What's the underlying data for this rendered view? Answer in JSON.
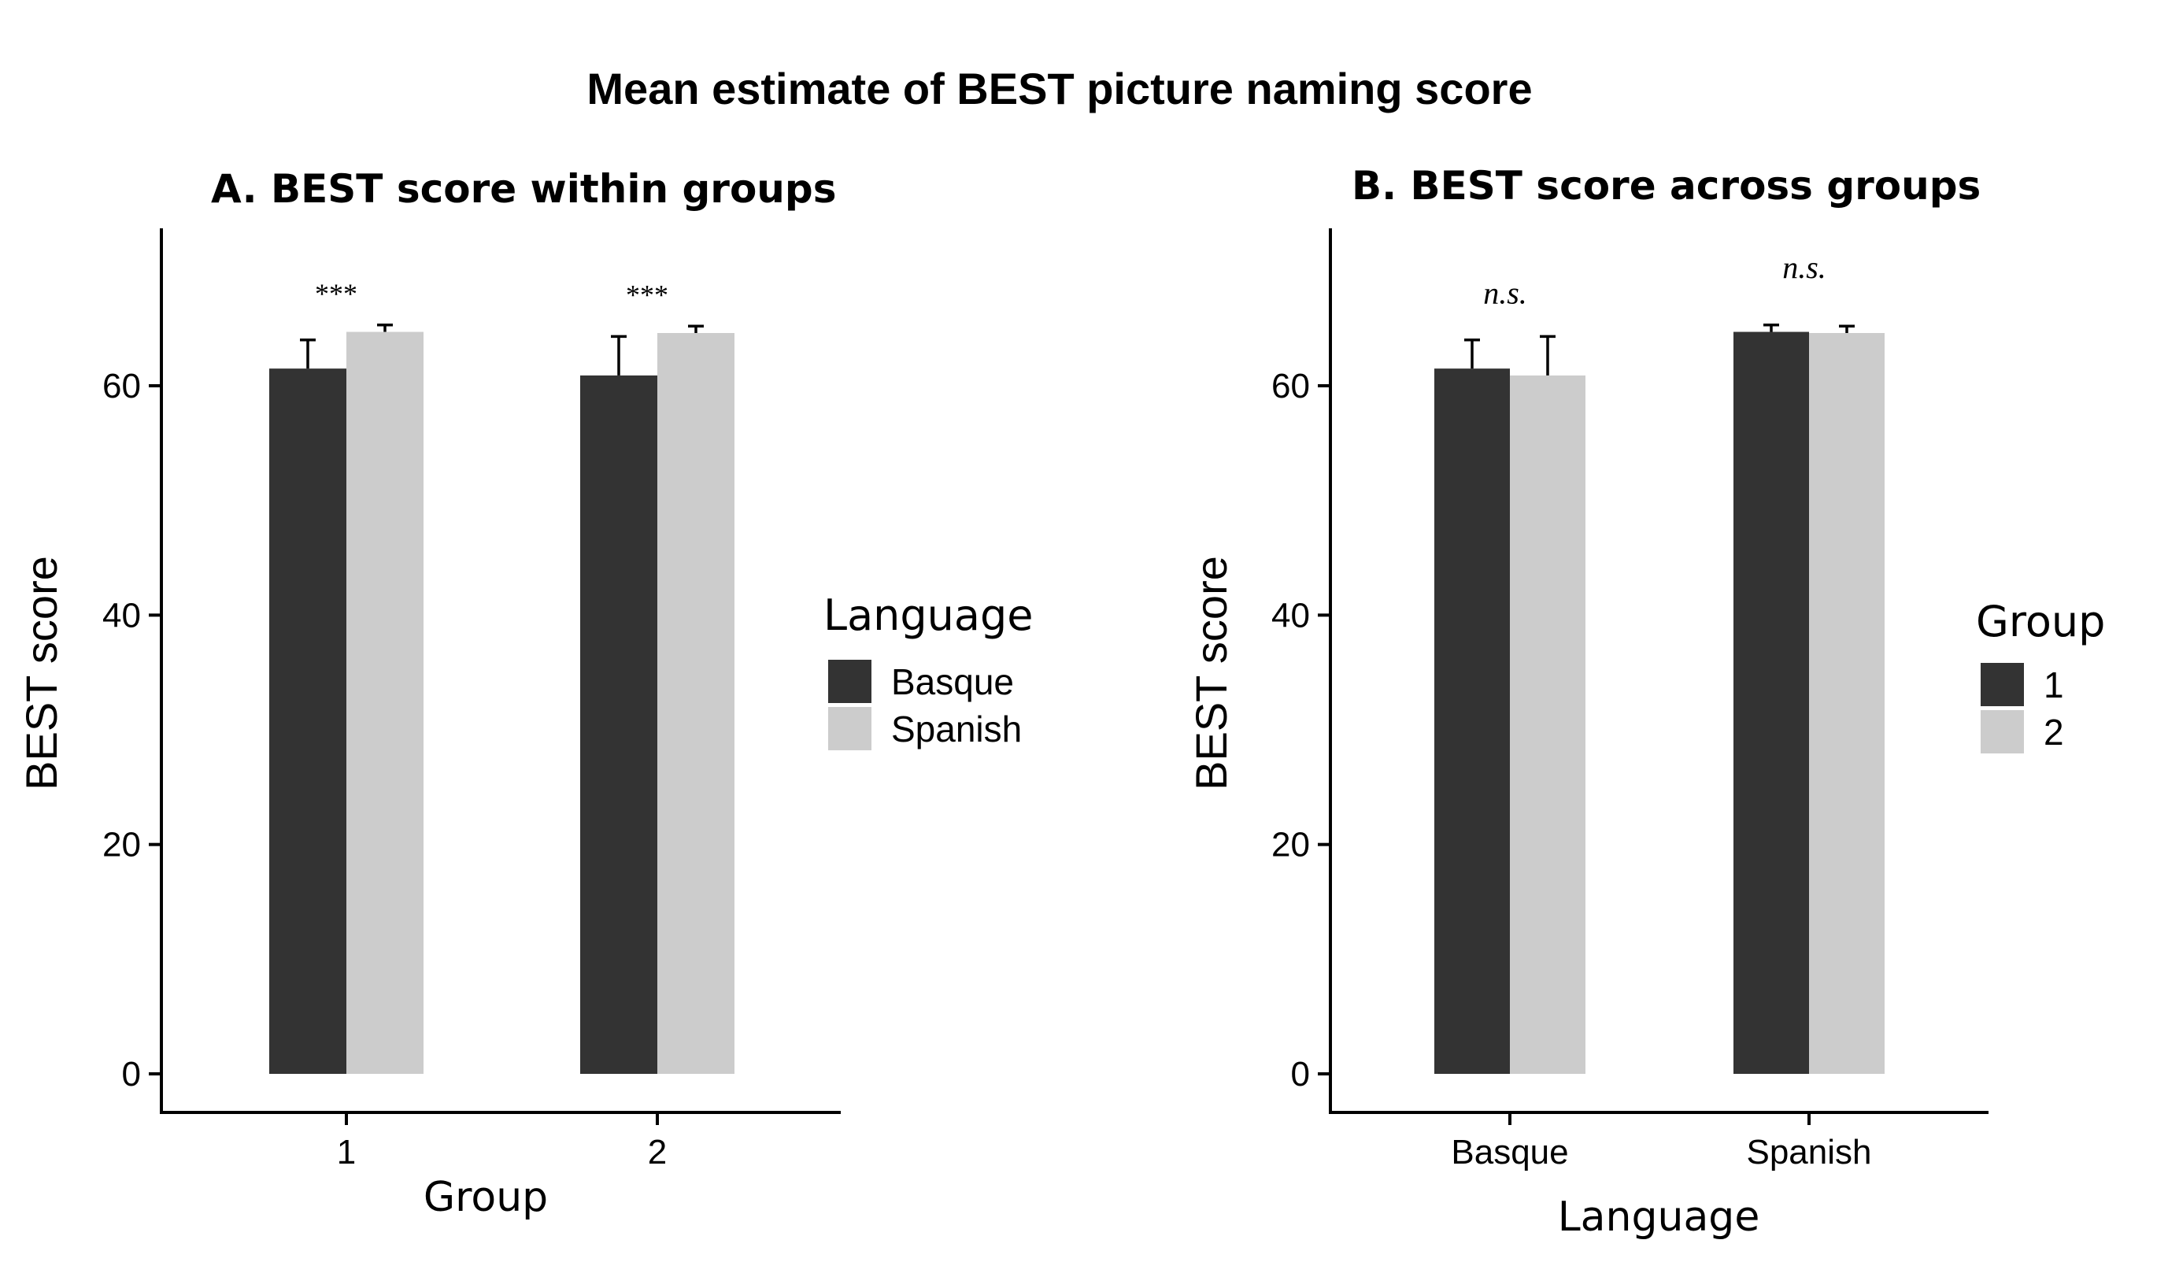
{
  "figure": {
    "title": "Mean estimate of BEST picture naming score"
  },
  "colors": {
    "dark": "#333333",
    "light": "#cccccc",
    "axis": "#000000"
  },
  "chart_data": [
    {
      "type": "bar",
      "title": "A. BEST score within groups",
      "xlabel": "Group",
      "ylabel": "BEST score",
      "ylim": [
        0,
        70
      ],
      "yticks": [
        0,
        20,
        40,
        60
      ],
      "categories": [
        "1",
        "2"
      ],
      "legend": {
        "title": "Language",
        "position": "right"
      },
      "series": [
        {
          "name": "Basque",
          "color": "#333333",
          "values": [
            61.5,
            60.9
          ],
          "errors": [
            2.5,
            3.4
          ]
        },
        {
          "name": "Spanish",
          "color": "#cccccc",
          "values": [
            64.7,
            64.6
          ],
          "errors": [
            0.6,
            0.6
          ]
        }
      ],
      "annotations": [
        "***",
        "***"
      ],
      "grid": false
    },
    {
      "type": "bar",
      "title": "B. BEST score across groups",
      "xlabel": "Language",
      "ylabel": "BEST score",
      "ylim": [
        0,
        70
      ],
      "yticks": [
        0,
        20,
        40,
        60
      ],
      "categories": [
        "Basque",
        "Spanish"
      ],
      "legend": {
        "title": "Group",
        "position": "right"
      },
      "series": [
        {
          "name": "1",
          "color": "#333333",
          "values": [
            61.5,
            64.7
          ],
          "errors": [
            2.5,
            0.6
          ]
        },
        {
          "name": "2",
          "color": "#cccccc",
          "values": [
            60.9,
            64.6
          ],
          "errors": [
            3.4,
            0.6
          ]
        }
      ],
      "annotations": [
        "n.s.",
        "n.s."
      ],
      "grid": false
    }
  ]
}
